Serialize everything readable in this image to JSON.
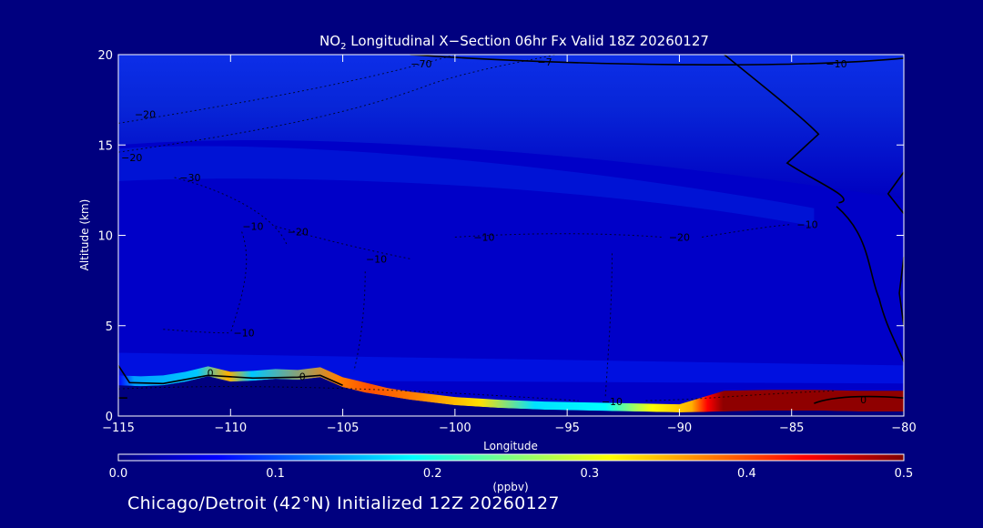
{
  "chart_data": {
    "type": "heatmap",
    "title_prefix": "NO",
    "title_sub": "2",
    "title_rest": " Longitudinal X−Section 06hr  Fx Valid 18Z 20260127",
    "xlabel": "Longitude",
    "ylabel": "Altitude (km)",
    "xlim": [
      -115,
      -80
    ],
    "ylim": [
      0,
      20
    ],
    "x_ticks": [
      {
        "v": -115,
        "label": "−115"
      },
      {
        "v": -110,
        "label": "−110"
      },
      {
        "v": -105,
        "label": "−105"
      },
      {
        "v": -100,
        "label": "−100"
      },
      {
        "v": -95,
        "label": "−95"
      },
      {
        "v": -90,
        "label": "−90"
      },
      {
        "v": -85,
        "label": "−85"
      },
      {
        "v": -80,
        "label": "−80"
      }
    ],
    "y_ticks": [
      {
        "v": 0,
        "label": "0"
      },
      {
        "v": 5,
        "label": "5"
      },
      {
        "v": 10,
        "label": "10"
      },
      {
        "v": 15,
        "label": "15"
      },
      {
        "v": 20,
        "label": "20"
      }
    ],
    "colorbar": {
      "min": 0.0,
      "max": 0.5,
      "ticks": [
        {
          "v": 0.0,
          "label": "0.0"
        },
        {
          "v": 0.1,
          "label": "0.1"
        },
        {
          "v": 0.2,
          "label": "0.2"
        },
        {
          "v": 0.3,
          "label": "0.3"
        },
        {
          "v": 0.4,
          "label": "0.4"
        },
        {
          "v": 0.5,
          "label": "0.5"
        }
      ],
      "unit": "(ppbv)",
      "colors": [
        "#00007f",
        "#0000ff",
        "#007fff",
        "#00ffff",
        "#7fff7f",
        "#ffff00",
        "#ff7f00",
        "#ff0000",
        "#7f0000"
      ]
    },
    "terrain": [
      {
        "x": -115,
        "y": 1.7
      },
      {
        "x": -114,
        "y": 1.65
      },
      {
        "x": -113,
        "y": 1.7
      },
      {
        "x": -112,
        "y": 1.9
      },
      {
        "x": -111,
        "y": 2.2
      },
      {
        "x": -110,
        "y": 1.9
      },
      {
        "x": -109,
        "y": 1.95
      },
      {
        "x": -108,
        "y": 2.05
      },
      {
        "x": -107,
        "y": 2.0
      },
      {
        "x": -106,
        "y": 2.15
      },
      {
        "x": -105,
        "y": 1.6
      },
      {
        "x": -104,
        "y": 1.3
      },
      {
        "x": -103,
        "y": 1.1
      },
      {
        "x": -102,
        "y": 0.9
      },
      {
        "x": -101,
        "y": 0.75
      },
      {
        "x": -100,
        "y": 0.6
      },
      {
        "x": -98,
        "y": 0.45
      },
      {
        "x": -96,
        "y": 0.35
      },
      {
        "x": -94,
        "y": 0.3
      },
      {
        "x": -92,
        "y": 0.25
      },
      {
        "x": -90,
        "y": 0.2
      },
      {
        "x": -88,
        "y": 0.25
      },
      {
        "x": -86,
        "y": 0.3
      },
      {
        "x": -84,
        "y": 0.3
      },
      {
        "x": -82,
        "y": 0.25
      },
      {
        "x": -80,
        "y": 0.25
      }
    ],
    "contour_labels": [
      {
        "x": -101.5,
        "y": 19.5,
        "label": "−70"
      },
      {
        "x": -96,
        "y": 19.6,
        "label": "−7"
      },
      {
        "x": -83,
        "y": 19.5,
        "label": "−10"
      },
      {
        "x": -113.8,
        "y": 16.7,
        "label": "−20"
      },
      {
        "x": -114.4,
        "y": 14.3,
        "label": "−20"
      },
      {
        "x": -111.8,
        "y": 13.2,
        "label": "−30"
      },
      {
        "x": -109,
        "y": 10.5,
        "label": "−10"
      },
      {
        "x": -107,
        "y": 10.2,
        "label": "−20"
      },
      {
        "x": -103.5,
        "y": 8.7,
        "label": "−10"
      },
      {
        "x": -98.7,
        "y": 9.9,
        "label": "−10"
      },
      {
        "x": -90,
        "y": 9.9,
        "label": "−20"
      },
      {
        "x": -84.3,
        "y": 10.6,
        "label": "−10"
      },
      {
        "x": -109.4,
        "y": 4.6,
        "label": "−10"
      },
      {
        "x": -110.9,
        "y": 2.4,
        "label": "0"
      },
      {
        "x": -106.8,
        "y": 2.2,
        "label": "0"
      },
      {
        "x": -93,
        "y": 0.8,
        "label": "−10"
      },
      {
        "x": -81.8,
        "y": 0.9,
        "label": "0"
      }
    ]
  },
  "footer": "Chicago/Detroit (42°N) Initialized 12Z 20260127"
}
